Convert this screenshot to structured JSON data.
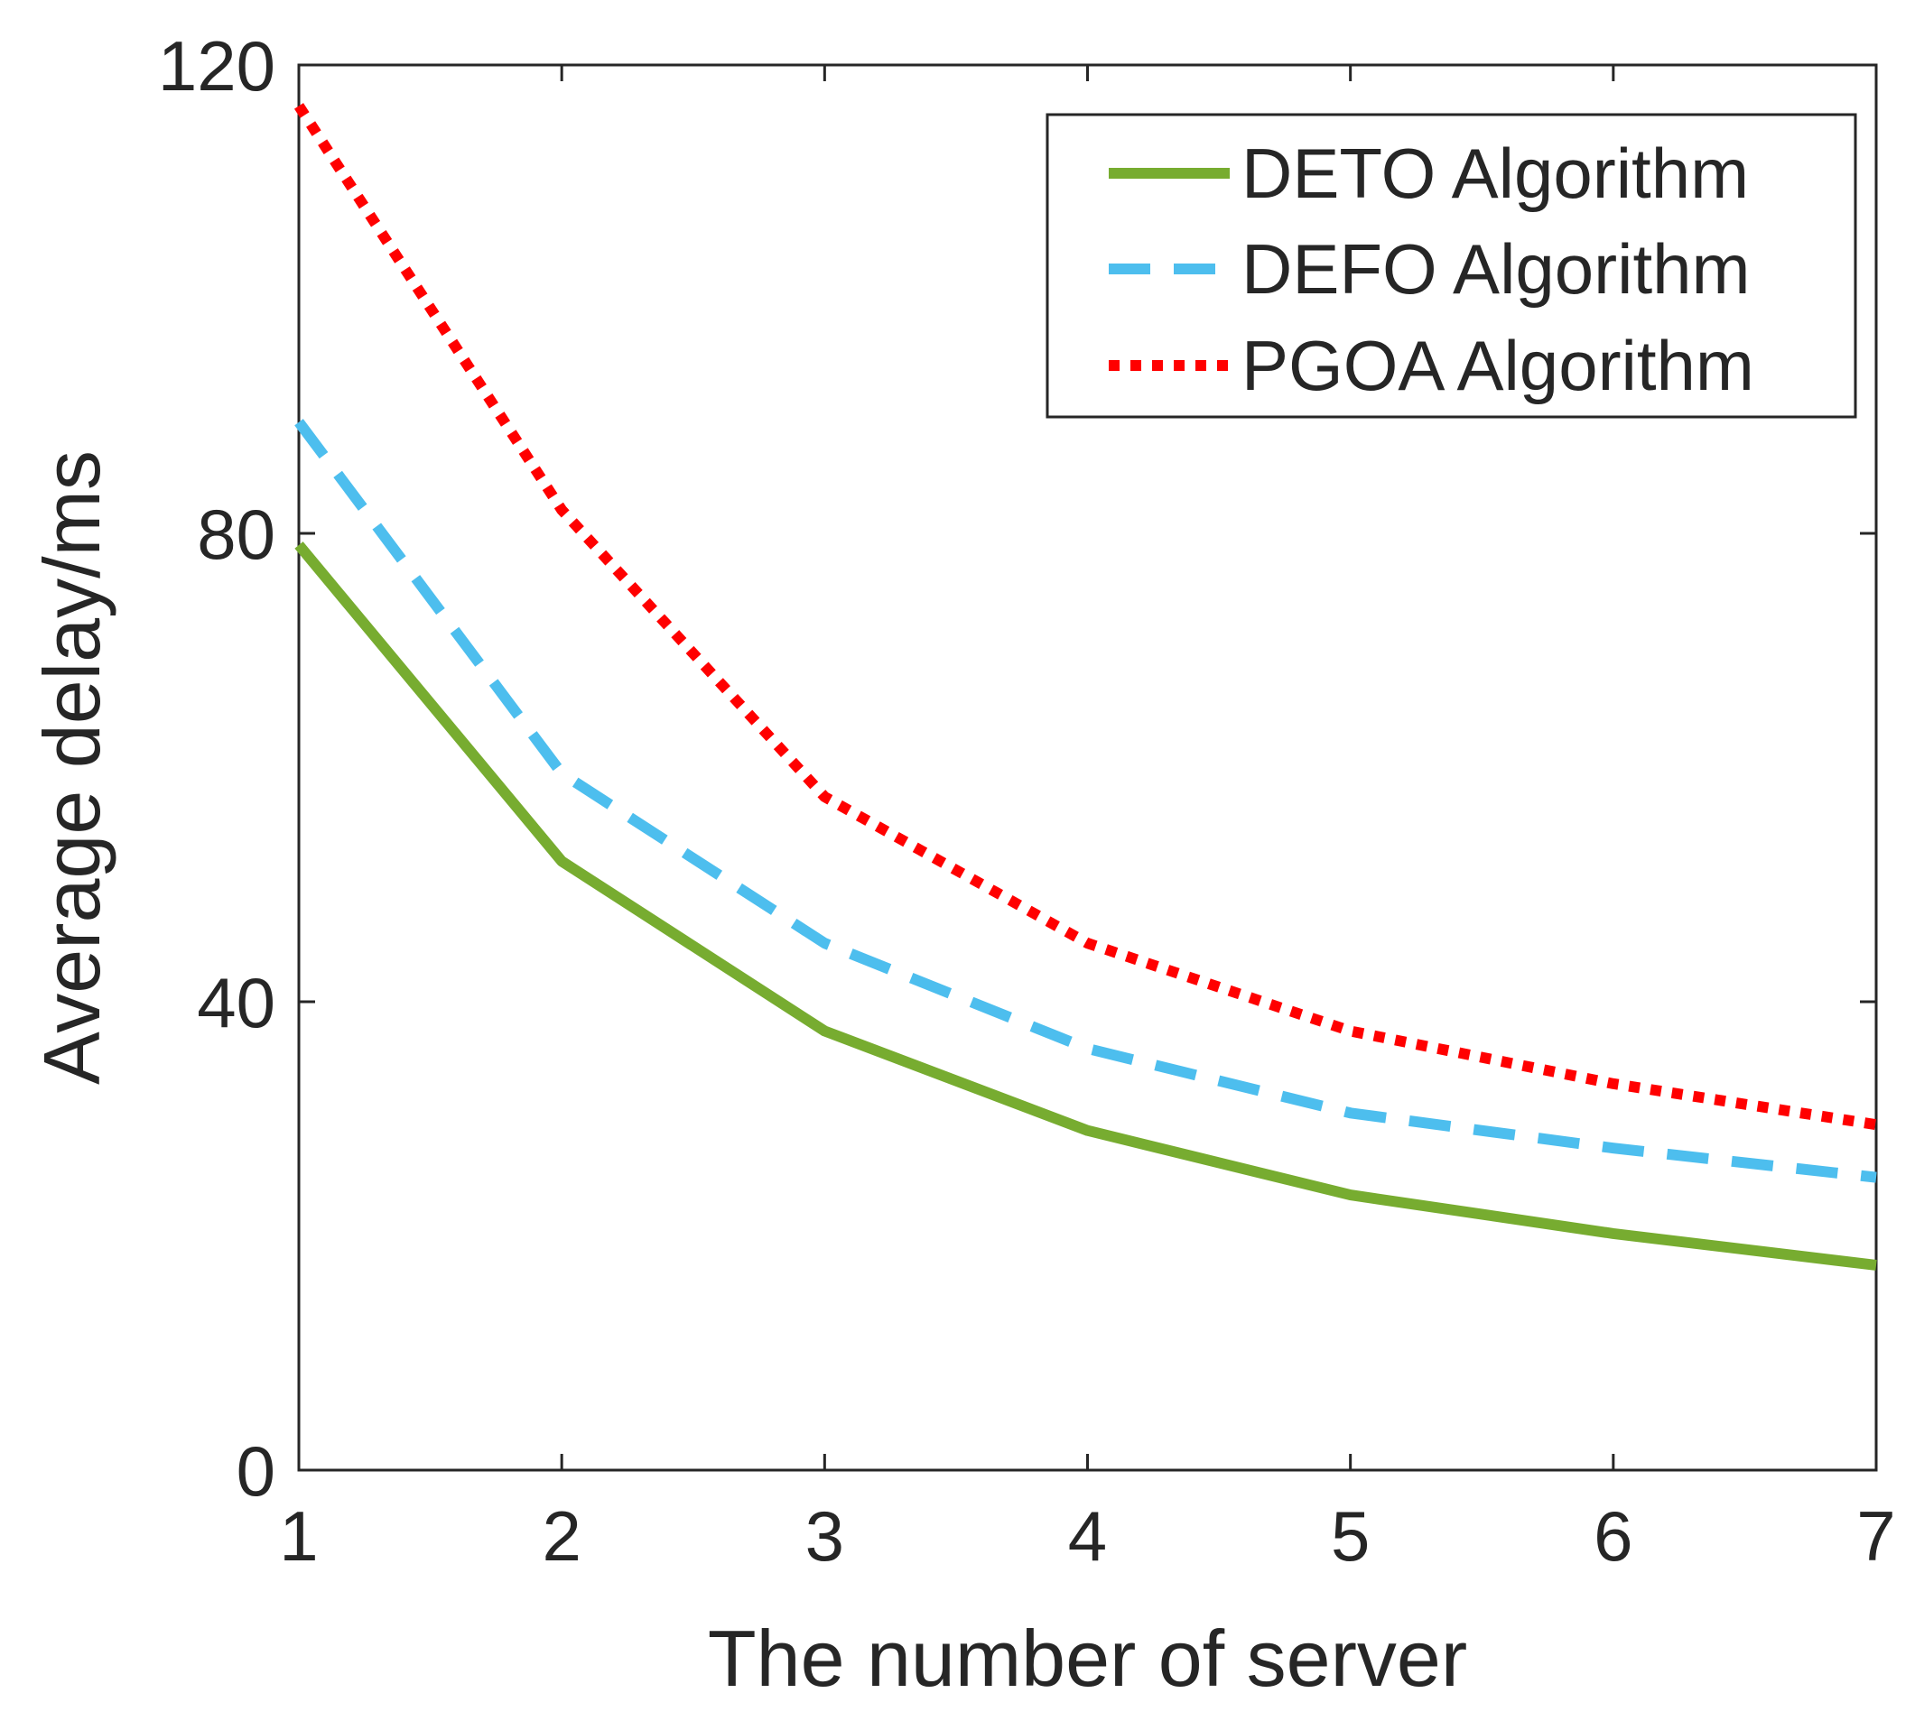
{
  "chart_data": {
    "type": "line",
    "title": "",
    "xlabel": "The number of server",
    "ylabel": "Average delay/ms",
    "x": [
      1,
      2,
      3,
      4,
      5,
      6,
      7
    ],
    "xlim": [
      1,
      7
    ],
    "ylim": [
      0,
      120
    ],
    "xticks": [
      1,
      2,
      3,
      4,
      5,
      6,
      7
    ],
    "yticks": [
      0,
      40,
      80,
      120
    ],
    "grid": false,
    "legend_position": "top-right",
    "series": [
      {
        "name": "DETO Algorithm",
        "values": [
          79,
          52,
          37.5,
          29,
          23.5,
          20.2,
          17.5
        ],
        "color": "#77AC30",
        "style": "solid"
      },
      {
        "name": "DEFO Algorithm",
        "values": [
          89.5,
          59.5,
          45,
          36,
          30.5,
          27.5,
          25
        ],
        "color": "#4DBEEE",
        "style": "dashed"
      },
      {
        "name": "PGOA Algorithm",
        "values": [
          116.5,
          82,
          57.5,
          45,
          37.5,
          33,
          29.5
        ],
        "color": "#FF0000",
        "style": "dotted"
      }
    ]
  }
}
